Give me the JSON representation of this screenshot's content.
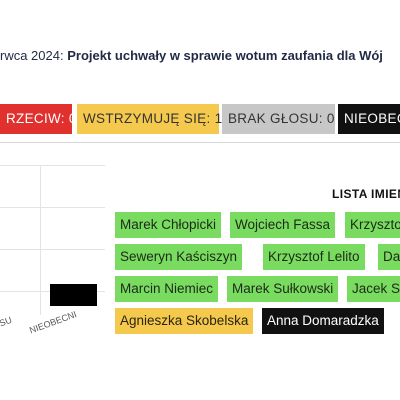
{
  "header": {
    "date_fragment": "rwca 2024",
    "separator": ":",
    "project_title": "Projekt uchwały w sprawie wotum zaufania dla Wój"
  },
  "vote_badges": [
    {
      "label": "RZECIW:",
      "count": "0",
      "color": "#e0312f"
    },
    {
      "label": "WSTRZYMUJĘ SIĘ:",
      "count": "1",
      "color": "#f5c94e"
    },
    {
      "label": "BRAK GŁOSU:",
      "count": "0",
      "color": "#c7c7c7"
    },
    {
      "label": "NIEOBEC",
      "count": "",
      "color": "#111111"
    }
  ],
  "chart_data": {
    "type": "bar",
    "categories": [
      "SU",
      "NIEOBECNI"
    ],
    "values": [
      null,
      1
    ],
    "title": "",
    "xlabel": "",
    "ylabel": ""
  },
  "names_list": {
    "title": "LISTA IMIEN",
    "rows": [
      [
        {
          "name": "Marek Chłopicki",
          "vote": "za"
        },
        {
          "name": "Wojciech Fassa",
          "vote": "za"
        },
        {
          "name": "Krzyszto",
          "vote": "za"
        }
      ],
      [
        {
          "name": "Seweryn Kaściszyn",
          "vote": "za"
        },
        {
          "name": "Krzysztof Lelito",
          "vote": "za"
        },
        {
          "name": "Da",
          "vote": "za"
        }
      ],
      [
        {
          "name": "Marcin Niemiec",
          "vote": "za"
        },
        {
          "name": "Marek Sułkowski",
          "vote": "za"
        },
        {
          "name": "Jacek S",
          "vote": "za"
        }
      ],
      [
        {
          "name": "Agnieszka Skobelska",
          "vote": "wstrzymuje"
        },
        {
          "name": "Anna Domaradzka",
          "vote": "nieobecny"
        }
      ]
    ]
  },
  "colors": {
    "za": "#79dc61",
    "wstrzymuje": "#f5c94e",
    "nieobecny": "#111111"
  }
}
